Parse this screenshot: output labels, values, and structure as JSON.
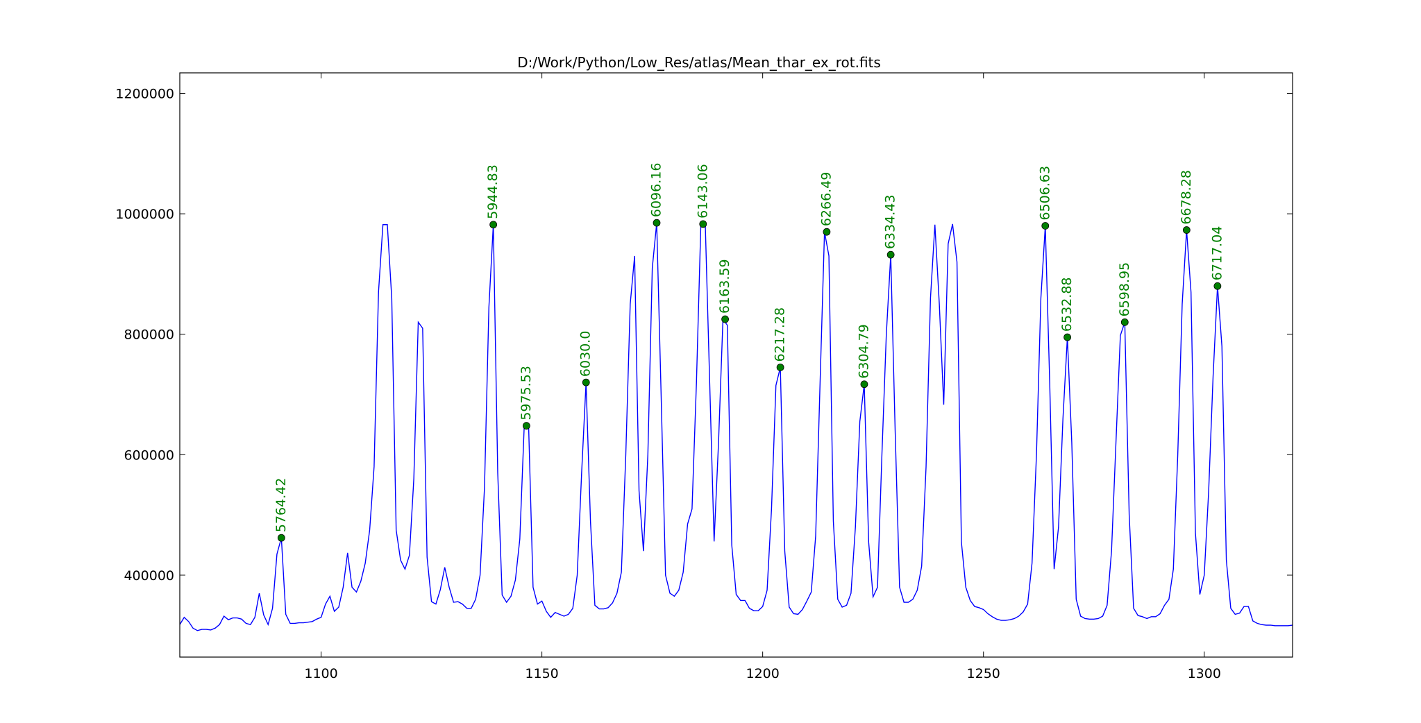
{
  "chart_data": {
    "type": "line",
    "title": "D:/Work/Python/Low_Res/atlas/Mean_thar_ex_rot.fits",
    "xlabel": "",
    "ylabel": "",
    "xlim": [
      1068,
      1320
    ],
    "ylim": [
      264000,
      1234000
    ],
    "xticks": [
      1100,
      1150,
      1200,
      1250,
      1300
    ],
    "yticks": [
      400000,
      600000,
      800000,
      1000000,
      1200000
    ],
    "xtick_labels": [
      "1100",
      "1150",
      "1200",
      "1250",
      "1300"
    ],
    "ytick_labels": [
      "400000",
      "600000",
      "800000",
      "1000000",
      "1200000"
    ],
    "grid": false,
    "legend": "none",
    "line_color": "#0000ff",
    "marker_color": "#008000",
    "series": [
      {
        "x": [
          1068,
          1069,
          1070,
          1071,
          1072,
          1073,
          1074,
          1075,
          1076,
          1077,
          1078,
          1079,
          1080,
          1081,
          1082,
          1083,
          1084,
          1085,
          1086,
          1087,
          1088,
          1089,
          1090,
          1091,
          1092,
          1093,
          1094,
          1095,
          1096,
          1097,
          1098,
          1099,
          1100,
          1101,
          1102,
          1103,
          1104,
          1105,
          1106,
          1107,
          1108,
          1109,
          1110,
          1111,
          1112,
          1113,
          1114,
          1115,
          1116,
          1117,
          1118,
          1119,
          1120,
          1121,
          1122,
          1123,
          1124,
          1125,
          1126,
          1127,
          1128,
          1129,
          1130,
          1131,
          1132,
          1133,
          1134,
          1135,
          1136,
          1137,
          1138,
          1139,
          1140,
          1141,
          1142,
          1143,
          1144,
          1145,
          1146,
          1147,
          1148,
          1149,
          1150,
          1151,
          1152,
          1153,
          1154,
          1155,
          1156,
          1157,
          1158,
          1159,
          1160,
          1161,
          1162,
          1163,
          1164,
          1165,
          1166,
          1167,
          1168,
          1169,
          1170,
          1171,
          1172,
          1173,
          1174,
          1175,
          1176,
          1177,
          1178,
          1179,
          1180,
          1181,
          1182,
          1183,
          1184,
          1185,
          1186,
          1187,
          1188,
          1189,
          1190,
          1191,
          1192,
          1193,
          1194,
          1195,
          1196,
          1197,
          1198,
          1199,
          1200,
          1201,
          1202,
          1203,
          1204,
          1205,
          1206,
          1207,
          1208,
          1209,
          1210,
          1211,
          1212,
          1213,
          1214,
          1215,
          1216,
          1217,
          1218,
          1219,
          1220,
          1221,
          1222,
          1223,
          1224,
          1225,
          1226,
          1227,
          1228,
          1229,
          1230,
          1231,
          1232,
          1233,
          1234,
          1235,
          1236,
          1237,
          1238,
          1239,
          1240,
          1241,
          1242,
          1243,
          1244,
          1245,
          1246,
          1247,
          1248,
          1249,
          1250,
          1251,
          1252,
          1253,
          1254,
          1255,
          1256,
          1257,
          1258,
          1259,
          1260,
          1261,
          1262,
          1263,
          1264,
          1265,
          1266,
          1267,
          1268,
          1269,
          1270,
          1271,
          1272,
          1273,
          1274,
          1275,
          1276,
          1277,
          1278,
          1279,
          1280,
          1281,
          1282,
          1283,
          1284,
          1285,
          1286,
          1287,
          1288,
          1289,
          1290,
          1291,
          1292,
          1293,
          1294,
          1295,
          1296,
          1297,
          1298,
          1299,
          1300,
          1301,
          1302,
          1303,
          1304,
          1305,
          1306,
          1307,
          1308,
          1309,
          1310,
          1311,
          1312,
          1313,
          1314,
          1315,
          1316,
          1317,
          1318,
          1319,
          1320
        ],
        "y": [
          318000,
          330000,
          323000,
          312000,
          308000,
          310000,
          310000,
          309000,
          312000,
          318000,
          332000,
          326000,
          329000,
          329000,
          327000,
          320000,
          318000,
          330000,
          370000,
          334000,
          318000,
          345000,
          435000,
          462000,
          335000,
          320000,
          320000,
          321000,
          321000,
          322000,
          323000,
          327000,
          330000,
          352000,
          365000,
          340000,
          347000,
          380000,
          437000,
          380000,
          372000,
          390000,
          420000,
          475000,
          580000,
          870000,
          982000,
          982000,
          860000,
          475000,
          425000,
          410000,
          433000,
          560000,
          820000,
          810000,
          430000,
          356000,
          352000,
          376000,
          413000,
          380000,
          355000,
          356000,
          352000,
          345000,
          345000,
          360000,
          400000,
          545000,
          845000,
          982000,
          570000,
          367000,
          355000,
          365000,
          392000,
          460000,
          648000,
          646000,
          380000,
          352000,
          357000,
          340000,
          330000,
          338000,
          335000,
          332000,
          335000,
          345000,
          400000,
          570000,
          720000,
          490000,
          350000,
          344000,
          344000,
          346000,
          354000,
          370000,
          405000,
          600000,
          850000,
          930000,
          540000,
          440000,
          600000,
          910000,
          985000,
          700000,
          400000,
          370000,
          365000,
          375000,
          405000,
          485000,
          510000,
          720000,
          983000,
          983000,
          720000,
          456000,
          620000,
          825000,
          815000,
          450000,
          368000,
          358000,
          358000,
          345000,
          341000,
          341000,
          348000,
          375000,
          510000,
          715000,
          745000,
          440000,
          347000,
          336000,
          335000,
          343000,
          357000,
          372000,
          465000,
          720000,
          970000,
          930000,
          490000,
          360000,
          347000,
          350000,
          370000,
          480000,
          655000,
          717000,
          455000,
          364000,
          380000,
          600000,
          800000,
          932000,
          640000,
          380000,
          355000,
          355000,
          360000,
          375000,
          415000,
          580000,
          860000,
          982000,
          850000,
          683000,
          950000,
          983000,
          920000,
          455000,
          380000,
          358000,
          348000,
          346000,
          343000,
          336000,
          331000,
          327000,
          325000,
          325000,
          326000,
          328000,
          332000,
          339000,
          352000,
          420000,
          600000,
          860000,
          980000,
          720000,
          410000,
          480000,
          660000,
          795000,
          620000,
          360000,
          332000,
          328000,
          327000,
          327000,
          328000,
          332000,
          350000,
          440000,
          620000,
          798000,
          820000,
          500000,
          345000,
          333000,
          331000,
          328000,
          331000,
          331000,
          336000,
          350000,
          360000,
          410000,
          600000,
          850000,
          973000,
          870000,
          470000,
          368000,
          400000,
          540000,
          730000,
          880000,
          780000,
          425000,
          345000,
          335000,
          337000,
          348000,
          348000,
          324000,
          320000,
          318000,
          317000,
          317000,
          316000,
          316000,
          316000,
          316000,
          317000
        ]
      }
    ],
    "peaks": [
      {
        "x": 1091,
        "y": 462000,
        "label": "5764.42"
      },
      {
        "x": 1139,
        "y": 982000,
        "label": "5944.83"
      },
      {
        "x": 1146.5,
        "y": 648000,
        "label": "5975.53"
      },
      {
        "x": 1160,
        "y": 720000,
        "label": "6030.0"
      },
      {
        "x": 1176,
        "y": 985000,
        "label": "6096.16"
      },
      {
        "x": 1186.5,
        "y": 983000,
        "label": "6143.06"
      },
      {
        "x": 1191.5,
        "y": 825000,
        "label": "6163.59"
      },
      {
        "x": 1204,
        "y": 745000,
        "label": "6217.28"
      },
      {
        "x": 1214.5,
        "y": 970000,
        "label": "6266.49"
      },
      {
        "x": 1223,
        "y": 717000,
        "label": "6304.79"
      },
      {
        "x": 1229,
        "y": 932000,
        "label": "6334.43"
      },
      {
        "x": 1264,
        "y": 980000,
        "label": "6506.63"
      },
      {
        "x": 1269,
        "y": 795000,
        "label": "6532.88"
      },
      {
        "x": 1282,
        "y": 820000,
        "label": "6598.95"
      },
      {
        "x": 1296,
        "y": 973000,
        "label": "6678.28"
      },
      {
        "x": 1303,
        "y": 880000,
        "label": "6717.04"
      }
    ]
  }
}
